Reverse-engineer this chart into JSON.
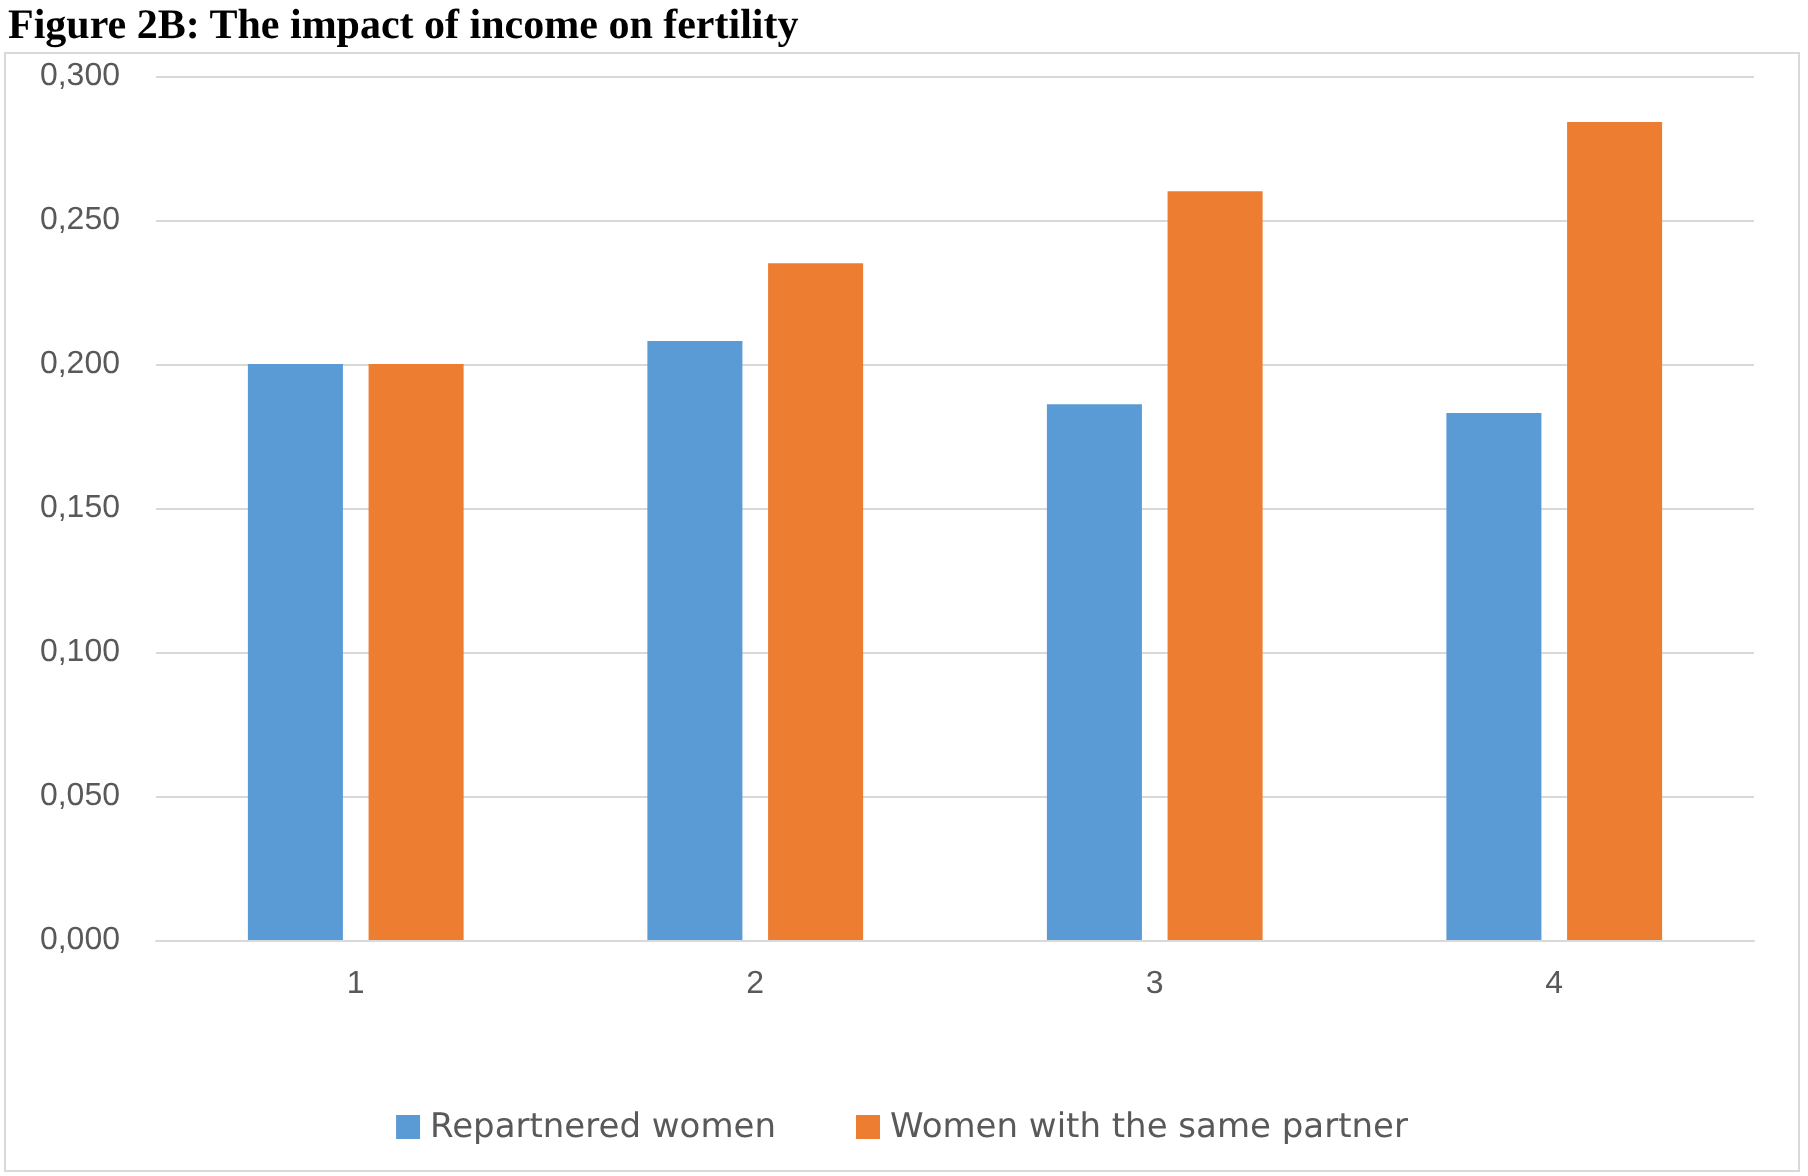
{
  "chart_data": {
    "type": "bar",
    "title": "Figure 2B: The impact of income on fertility",
    "categories": [
      "1",
      "2",
      "3",
      "4"
    ],
    "series": [
      {
        "name": "Repartnered women",
        "color": "#5b9bd5",
        "values": [
          0.2,
          0.208,
          0.186,
          0.183
        ]
      },
      {
        "name": "Women with the same partner",
        "color": "#ed7d31",
        "values": [
          0.2,
          0.235,
          0.26,
          0.284
        ]
      }
    ],
    "ylim": [
      0,
      0.3
    ],
    "yticks": [
      {
        "value": 0,
        "label": "0,000"
      },
      {
        "value": 0.05,
        "label": "0,050"
      },
      {
        "value": 0.1,
        "label": "0,100"
      },
      {
        "value": 0.15,
        "label": "0,150"
      },
      {
        "value": 0.2,
        "label": "0,200"
      },
      {
        "value": 0.25,
        "label": "0,250"
      },
      {
        "value": 0.3,
        "label": "0,300"
      }
    ],
    "grid": "y",
    "legend": "bottom"
  }
}
